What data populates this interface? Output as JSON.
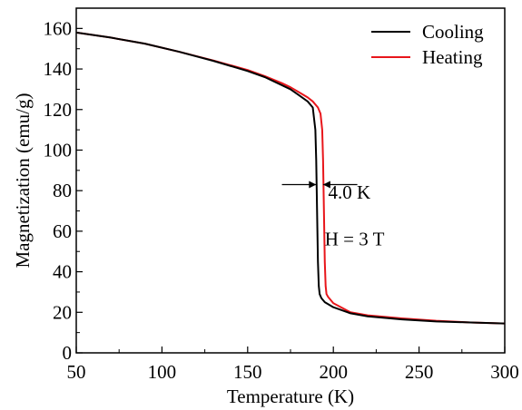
{
  "chart_data": {
    "type": "line",
    "title": "",
    "xlabel": "Temperature (K)",
    "ylabel": "Magnetization (emu/g)",
    "xlim": [
      50,
      300
    ],
    "ylim": [
      0,
      170
    ],
    "x_ticks": [
      50,
      100,
      150,
      200,
      250,
      300
    ],
    "y_ticks": [
      0,
      20,
      40,
      60,
      80,
      100,
      120,
      140,
      160
    ],
    "grid": false,
    "legend_position": "top-right",
    "series": [
      {
        "name": "Cooling",
        "color": "#000000",
        "x": [
          50,
          70,
          90,
          110,
          130,
          150,
          160,
          170,
          175,
          180,
          185,
          188,
          189.5,
          190,
          190.5,
          191,
          191.5,
          192,
          193,
          195,
          200,
          210,
          220,
          240,
          260,
          280,
          300
        ],
        "y": [
          158,
          155.5,
          152.5,
          148.5,
          144,
          139,
          136,
          132,
          130,
          127,
          124,
          121,
          110,
          95,
          70,
          45,
          33,
          29,
          27,
          25,
          22.5,
          19.5,
          18,
          16.5,
          15.5,
          15,
          14.5
        ]
      },
      {
        "name": "Heating",
        "color": "#e8161b",
        "x": [
          50,
          70,
          90,
          110,
          130,
          150,
          160,
          170,
          175,
          180,
          185,
          188,
          191,
          192.5,
          193.5,
          194,
          194.5,
          195,
          195.5,
          196,
          197,
          200,
          210,
          220,
          240,
          260,
          280,
          300
        ],
        "y": [
          158,
          155.5,
          152.5,
          148.5,
          144.2,
          139.5,
          136.5,
          133,
          131,
          128.5,
          126,
          124,
          121,
          118,
          110,
          95,
          70,
          45,
          33,
          29,
          27.5,
          24.5,
          20,
          18.5,
          17,
          15.8,
          15,
          14.5
        ]
      }
    ],
    "annotations": [
      {
        "type": "width-arrows",
        "x_left": 190,
        "x_right": 194,
        "y": 83,
        "length": 20
      },
      {
        "type": "text",
        "text": "4.0 K",
        "x": 197,
        "y": 76
      },
      {
        "type": "text",
        "text": "H = 3 T",
        "x": 195,
        "y": 53
      }
    ]
  }
}
